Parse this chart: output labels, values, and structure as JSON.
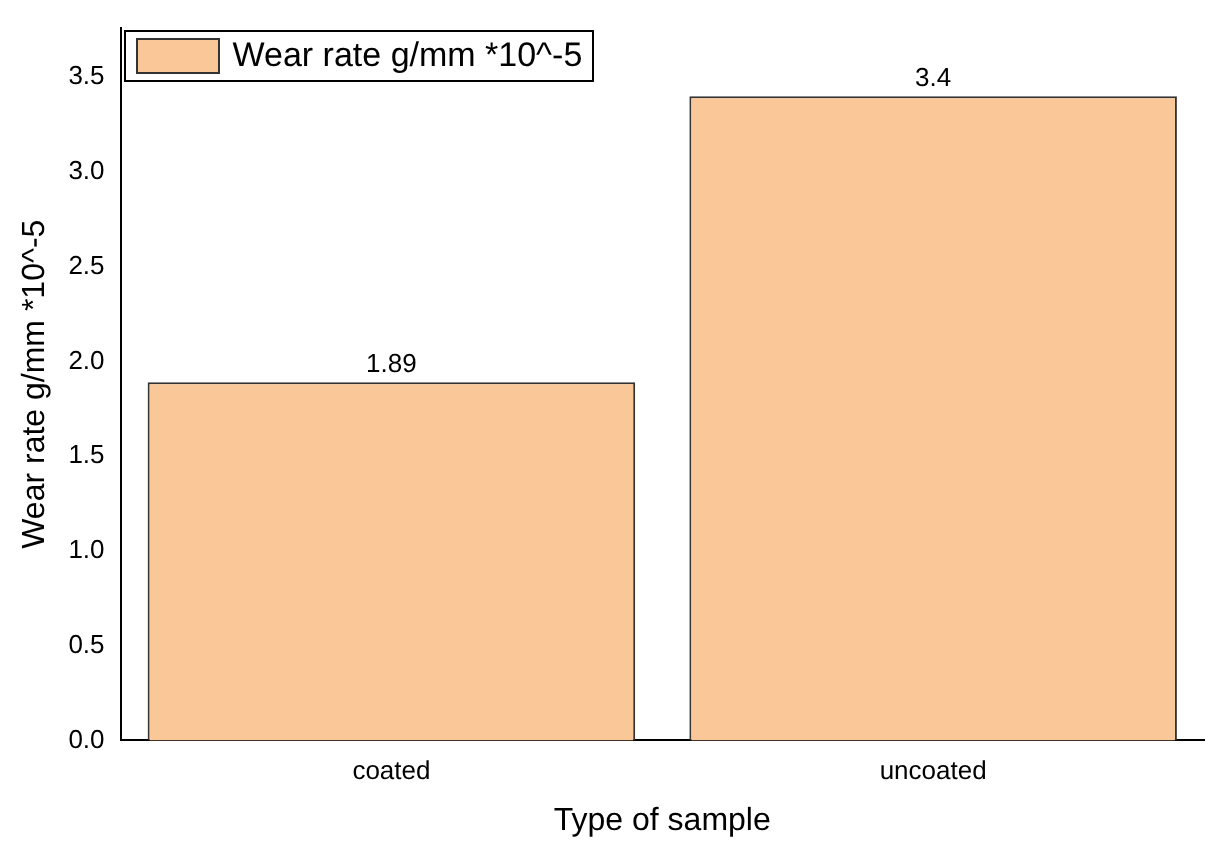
{
  "chart_data": {
    "type": "bar",
    "xlabel": "Type of sample",
    "ylabel": "Wear rate g/mm *10^-5",
    "categories": [
      "coated",
      "uncoated"
    ],
    "series": [
      {
        "name": "Wear rate g/mm *10^-5",
        "color": "#fac898",
        "values": [
          1.89,
          3.4
        ]
      }
    ],
    "ylim": [
      0,
      3.76
    ],
    "yticks": [
      {
        "value": 0,
        "label": "0.0"
      },
      0.5,
      {
        "value": 1,
        "label": "1.0"
      },
      1.5,
      {
        "value": 2,
        "label": "2.0"
      },
      2.5,
      {
        "value": 3,
        "label": "3.0"
      },
      3.5
    ],
    "data_labels": true,
    "legend": "top left",
    "grid": false
  }
}
